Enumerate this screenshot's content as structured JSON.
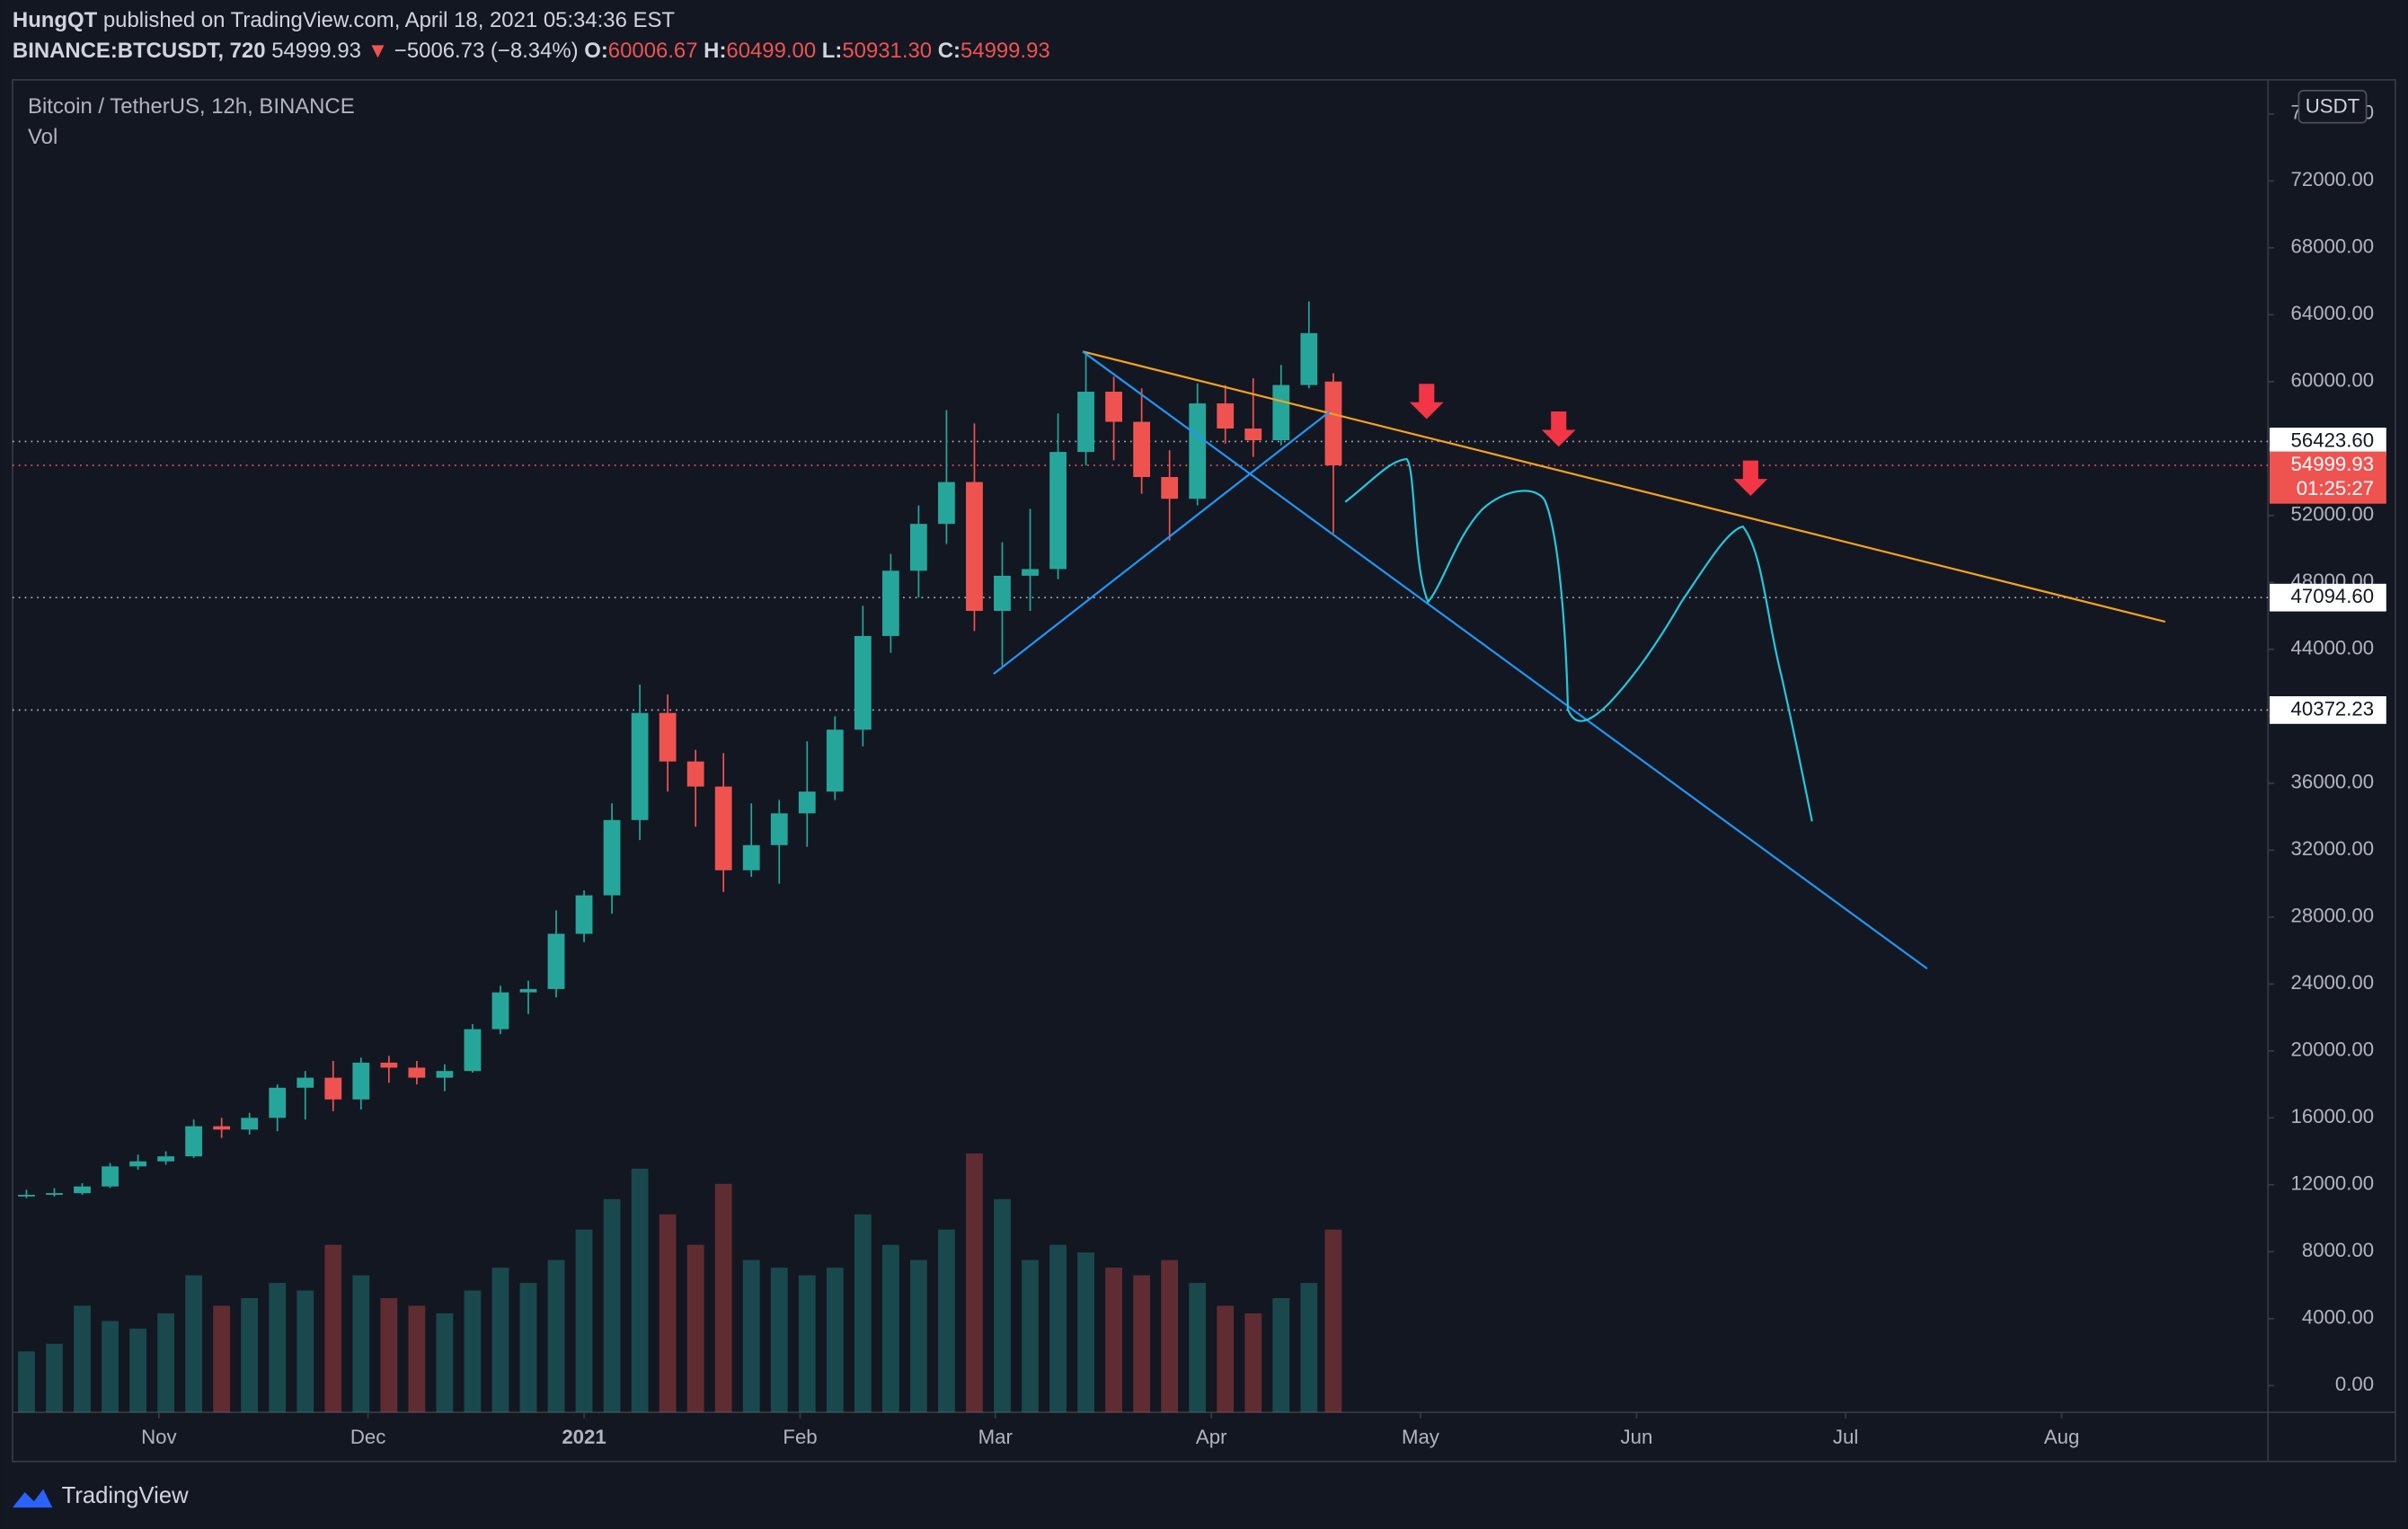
{
  "header": {
    "author": "HungQT",
    "published": "published on TradingView.com, April 18, 2021 05:34:36 EST",
    "symbol": "BINANCE:BTCUSDT, 720",
    "last": "54999.93",
    "arrow": "▼",
    "change": "−5006.73 (−8.34%)",
    "o_label": "O:",
    "o": "60006.67",
    "h_label": "H:",
    "h": "60499.00",
    "l_label": "L:",
    "l": "50931.30",
    "c_label": "C:",
    "c": "54999.93"
  },
  "legend": {
    "title": "Bitcoin / TetherUS, 12h, BINANCE",
    "vol": "Vol"
  },
  "currency": "USDT",
  "footer": "TradingView",
  "chart_data": {
    "type": "candlestick",
    "x": [
      -80,
      -76,
      -72,
      -68,
      -64,
      -60,
      -56,
      -52,
      -48,
      -44,
      -40,
      -36,
      -32,
      -28,
      -24,
      -20,
      -16,
      -12,
      -8,
      -4,
      0,
      4,
      8,
      12,
      16,
      20,
      24,
      28,
      32,
      36,
      40,
      44,
      48,
      52,
      56,
      60,
      64,
      68,
      72,
      76,
      80,
      84,
      88,
      92,
      96,
      100,
      104,
      107.5
    ],
    "open": [
      11300,
      11400,
      11500,
      11900,
      13100,
      13400,
      13700,
      15500,
      15300,
      16000,
      17800,
      18400,
      17100,
      19300,
      19000,
      18400,
      18800,
      21300,
      23500,
      23700,
      27000,
      29300,
      33800,
      40200,
      37300,
      35800,
      30800,
      32300,
      34200,
      35500,
      39200,
      44800,
      48700,
      51500,
      54000,
      46300,
      48400,
      48800,
      55800,
      59400,
      57600,
      54300,
      53000,
      58700,
      57200,
      56500,
      59800,
      60006.67
    ],
    "high": [
      11700,
      11800,
      12100,
      13300,
      13800,
      14000,
      15900,
      16000,
      16300,
      18000,
      18800,
      19400,
      19600,
      19700,
      19400,
      19200,
      21600,
      23900,
      24200,
      28400,
      29600,
      34800,
      41900,
      41300,
      38000,
      37800,
      34800,
      35000,
      38500,
      40000,
      46600,
      49700,
      52600,
      58300,
      57500,
      50400,
      52400,
      58100,
      61700,
      60300,
      59600,
      55900,
      59900,
      59800,
      60200,
      61000,
      64800,
      60499
    ],
    "low": [
      11200,
      11300,
      11400,
      11800,
      12900,
      13200,
      13600,
      14800,
      15000,
      15200,
      15900,
      16400,
      16500,
      18100,
      18000,
      17600,
      18700,
      21000,
      22200,
      23200,
      26500,
      28200,
      32600,
      35500,
      33400,
      29500,
      30400,
      30000,
      32200,
      35000,
      38200,
      43800,
      47100,
      50300,
      45100,
      43000,
      46300,
      48200,
      55000,
      55300,
      53300,
      50500,
      52600,
      56300,
      55500,
      56200,
      59600,
      50931.3
    ],
    "close": [
      11400,
      11500,
      11900,
      13100,
      13400,
      13700,
      15500,
      15300,
      16000,
      17800,
      18400,
      17100,
      19300,
      19000,
      18400,
      18800,
      21300,
      23500,
      23700,
      27000,
      29300,
      33800,
      40200,
      37300,
      35800,
      30800,
      32300,
      34200,
      35500,
      39200,
      44800,
      48700,
      51500,
      54000,
      46300,
      48400,
      48800,
      55800,
      59400,
      57600,
      54300,
      53000,
      58700,
      57200,
      56500,
      59800,
      62900,
      54999.93
    ],
    "volume": [
      40,
      45,
      70,
      60,
      55,
      65,
      90,
      70,
      75,
      85,
      80,
      110,
      90,
      75,
      70,
      65,
      80,
      95,
      85,
      100,
      120,
      140,
      160,
      130,
      110,
      150,
      100,
      95,
      90,
      95,
      130,
      110,
      100,
      120,
      170,
      140,
      100,
      110,
      105,
      95,
      90,
      100,
      85,
      70,
      65,
      75,
      85,
      120
    ],
    "vlim": [
      0,
      280
    ],
    "up_color": "#26a69a",
    "down_color": "#ef5350",
    "xlim": [
      -82,
      241.6
    ],
    "xticks": [
      {
        "value": -61,
        "label": "Nov"
      },
      {
        "value": -31,
        "label": "Dec"
      },
      {
        "value": 0,
        "label": "2021"
      },
      {
        "value": 31,
        "label": "Feb"
      },
      {
        "value": 59,
        "label": "Mar"
      },
      {
        "value": 90,
        "label": "Apr"
      },
      {
        "value": 120,
        "label": "May"
      },
      {
        "value": 151,
        "label": "Jun"
      },
      {
        "value": 181,
        "label": "Jul"
      },
      {
        "value": 212,
        "label": "Aug"
      }
    ],
    "ylim": [
      -1600,
      78040
    ],
    "yticks": [
      {
        "value": 0,
        "label": "0.00"
      },
      {
        "value": 4000,
        "label": "4000.00"
      },
      {
        "value": 8000,
        "label": "8000.00"
      },
      {
        "value": 12000,
        "label": "12000.00"
      },
      {
        "value": 16000,
        "label": "16000.00"
      },
      {
        "value": 20000,
        "label": "20000.00"
      },
      {
        "value": 24000,
        "label": "24000.00"
      },
      {
        "value": 28000,
        "label": "28000.00"
      },
      {
        "value": 32000,
        "label": "32000.00"
      },
      {
        "value": 36000,
        "label": "36000.00"
      },
      {
        "value": 40000,
        "label": "40000.00"
      },
      {
        "value": 44000,
        "label": "44000.00"
      },
      {
        "value": 48000,
        "label": "48000.00"
      },
      {
        "value": 52000,
        "label": "52000.00"
      },
      {
        "value": 56000,
        "label": "56000.00"
      },
      {
        "value": 60000,
        "label": "60000.00"
      },
      {
        "value": 64000,
        "label": "64000.00"
      },
      {
        "value": 68000,
        "label": "68000.00"
      },
      {
        "value": 72000,
        "label": "72000.00"
      },
      {
        "value": 76000,
        "label": "76000.00"
      }
    ],
    "price_lines": [
      {
        "value": 56423.6,
        "label": "56423.60"
      },
      {
        "value": 47094.6,
        "label": "47094.60"
      },
      {
        "value": 40372.23,
        "label": "40372.23"
      }
    ],
    "last_price": {
      "value": 54999.93,
      "label": "54999.93",
      "countdown": "01:25:27",
      "color": "#ef5350"
    }
  }
}
